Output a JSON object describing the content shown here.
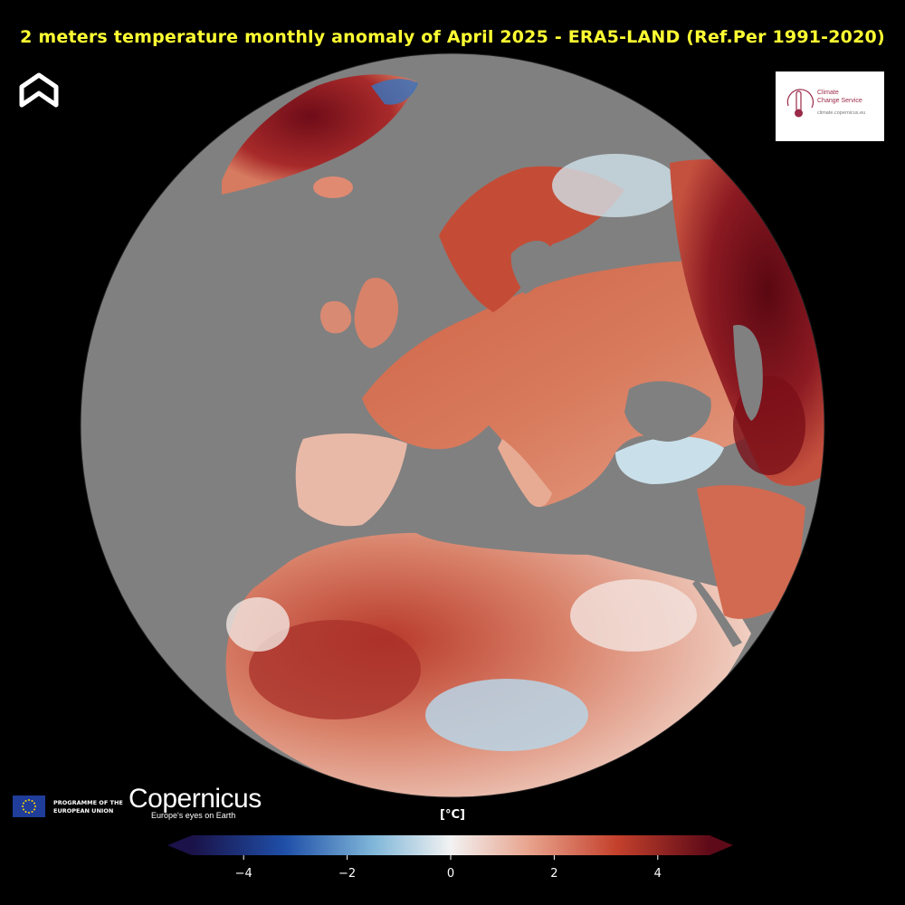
{
  "title": "2 meters temperature monthly anomaly of April 2025 - ERA5-LAND (Ref.Per 1991-2020)",
  "logos": {
    "c3s_line1": "Climate",
    "c3s_line2": "Change Service",
    "c3s_url": "climate.copernicus.eu",
    "eu_line1": "PROGRAMME OF THE",
    "eu_line2": "EUROPEAN UNION",
    "copernicus_word": "Copernicus",
    "copernicus_tagline": "Europe's eyes on Earth"
  },
  "colorbar": {
    "unit": "[°C]",
    "min": -5,
    "max": 5,
    "ticks": [
      {
        "value": -4,
        "label": "−4"
      },
      {
        "value": -2,
        "label": "−2"
      },
      {
        "value": 0,
        "label": "0"
      },
      {
        "value": 2,
        "label": "2"
      },
      {
        "value": 4,
        "label": "4"
      }
    ],
    "colors": [
      "#1a1248",
      "#1f4fa8",
      "#7fb6d8",
      "#f2f2f2",
      "#e8a48e",
      "#c4412c",
      "#5e0a18"
    ]
  },
  "map": {
    "projection": "orthographic",
    "ocean_color": "#808080",
    "land_color_scheme": "anomaly"
  }
}
